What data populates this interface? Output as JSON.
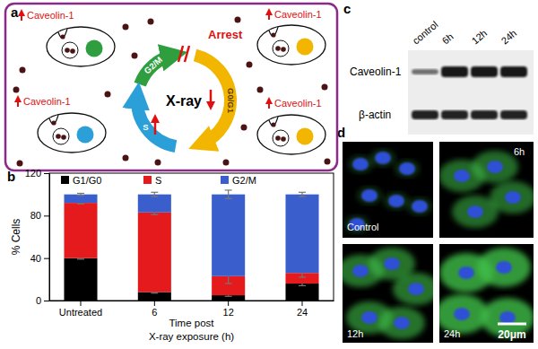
{
  "panel_labels": [
    "a",
    "b",
    "c",
    "d"
  ],
  "diagram": {
    "center": "X-ray",
    "arrest": "Arrest",
    "phases": [
      "G2/M",
      "G0/G1",
      "S"
    ],
    "cell_labels": [
      "Caveolin-1",
      "Caveolin-1",
      "Caveolin-1",
      "Caveolin-1"
    ]
  },
  "chart_data": {
    "type": "bar",
    "stacked": true,
    "categories": [
      "Untreated",
      "6",
      "12",
      "24"
    ],
    "x_label": "Time post\nX-ray exposure (h)",
    "y_label": "% Cells",
    "ylim": [
      0,
      120
    ],
    "yticks": [
      0,
      40,
      80,
      120
    ],
    "legend": "top",
    "series": [
      {
        "name": "G1/G0",
        "color": "#000000",
        "values": [
          40,
          8,
          5,
          16
        ],
        "errors": [
          1,
          1,
          1,
          2
        ]
      },
      {
        "name": "S",
        "color": "#e41a1c",
        "values": [
          52,
          75,
          18,
          10
        ],
        "errors": [
          1,
          2,
          7,
          4
        ]
      },
      {
        "name": "G2/M",
        "color": "#3a5fcd",
        "values": [
          8,
          17,
          77,
          74
        ],
        "errors": [
          1,
          2,
          4,
          2
        ]
      }
    ]
  },
  "blot": {
    "lanes": [
      "control",
      "6h",
      "12h",
      "24h"
    ],
    "rows": [
      "Caveolin-1",
      "β-actin"
    ]
  },
  "micrographs": {
    "images": [
      "Control",
      "6h",
      "12h",
      "24h"
    ],
    "scale_bar": "20μm"
  }
}
